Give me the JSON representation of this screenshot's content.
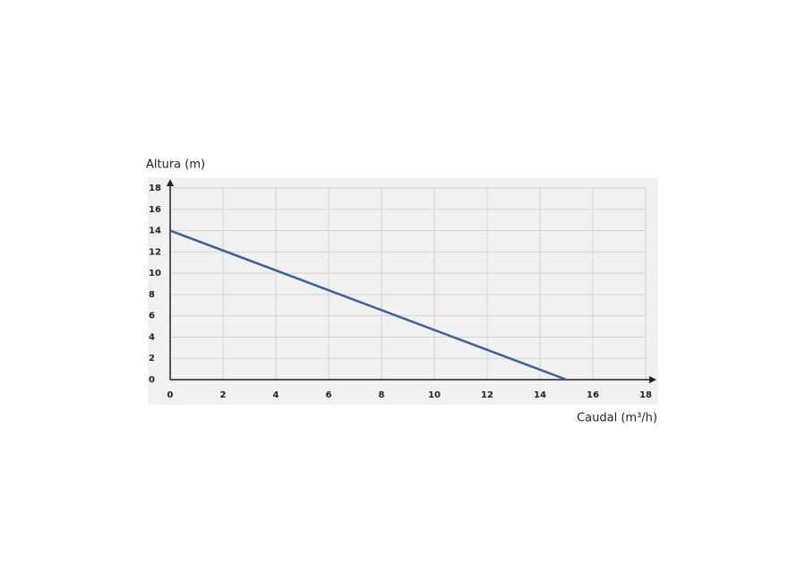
{
  "chart_data": {
    "type": "line",
    "x_label": "Caudal (m³/h)",
    "y_label": "Altura (m)",
    "x": [
      0,
      15
    ],
    "values": [
      14,
      0
    ],
    "color": "#3a5f9e",
    "xlim": [
      0,
      18
    ],
    "xticks": [
      0,
      2,
      4,
      6,
      8,
      10,
      12,
      14,
      16,
      18
    ],
    "ylim": [
      0,
      18
    ],
    "yticks": [
      0,
      2,
      4,
      6,
      8,
      10,
      12,
      14,
      16,
      18
    ],
    "grid": true
  }
}
